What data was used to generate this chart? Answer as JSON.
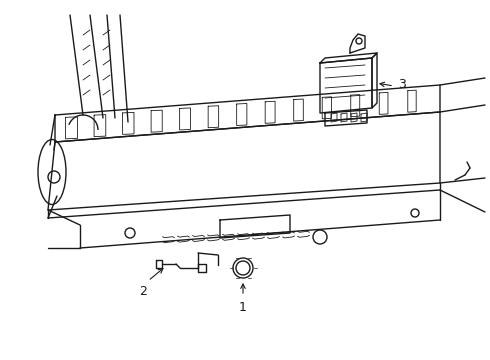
{
  "background_color": "#ffffff",
  "line_color": "#1a1a1a",
  "line_width": 1.0,
  "label_1": "1",
  "label_2": "2",
  "label_3": "3",
  "label_fontsize": 9,
  "fig_width": 4.9,
  "fig_height": 3.6,
  "dpi": 100
}
